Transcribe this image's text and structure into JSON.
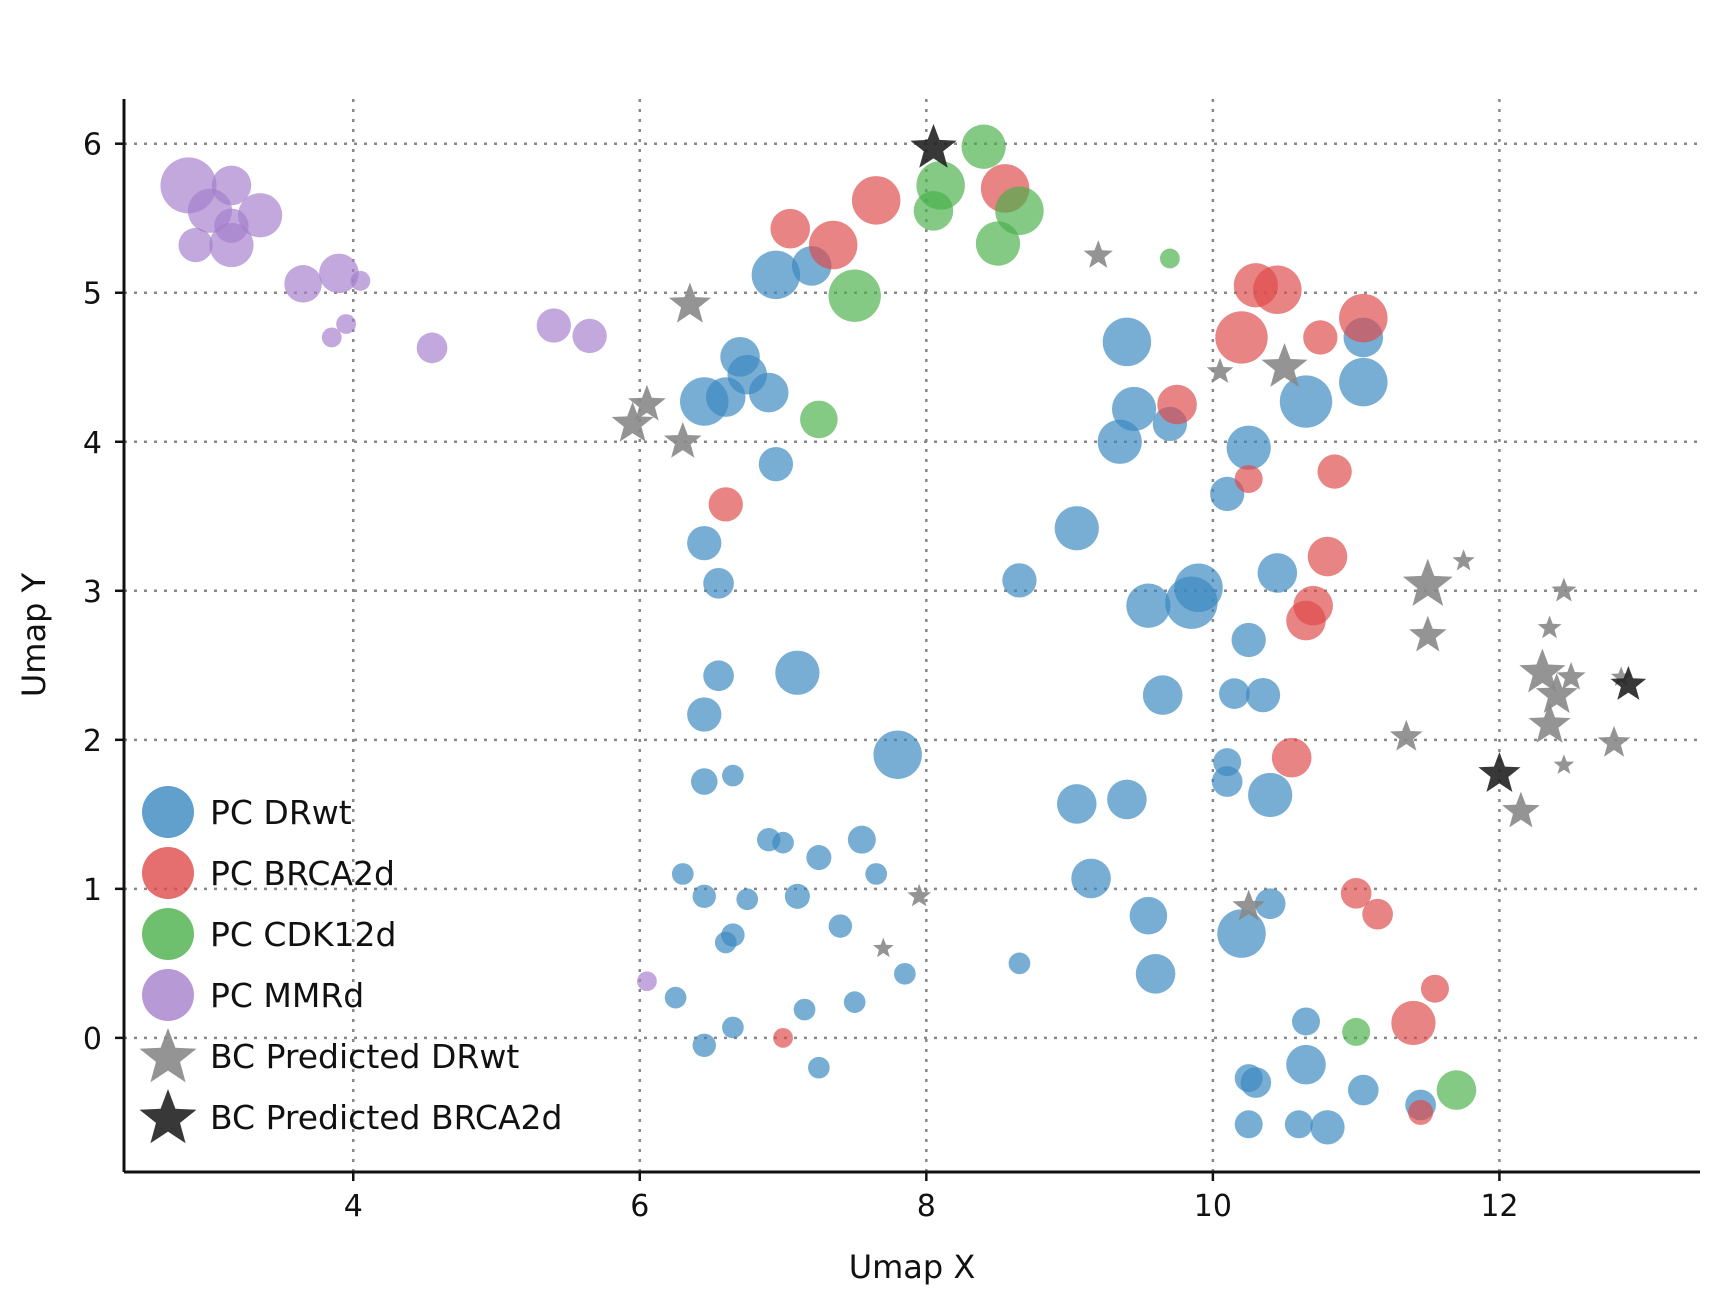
{
  "chart_data": {
    "type": "scatter",
    "xlabel": "Umap X",
    "ylabel": "Umap Y",
    "xlim": [
      2.4,
      13.4
    ],
    "ylim": [
      -0.9,
      6.3
    ],
    "xticks": [
      4,
      6,
      8,
      10,
      12
    ],
    "yticks": [
      0,
      1,
      2,
      3,
      4,
      5,
      6
    ],
    "grid": true,
    "legend_position": "lower-left",
    "series": [
      {
        "name": "PC DRwt",
        "marker": "circle",
        "color": "#3a87c0",
        "points": [
          {
            "x": 6.95,
            "y": 5.12,
            "s": 3
          },
          {
            "x": 7.2,
            "y": 5.18,
            "s": 2
          },
          {
            "x": 6.7,
            "y": 4.57,
            "s": 2
          },
          {
            "x": 6.75,
            "y": 4.45,
            "s": 2
          },
          {
            "x": 6.45,
            "y": 4.27,
            "s": 3
          },
          {
            "x": 6.6,
            "y": 4.3,
            "s": 2
          },
          {
            "x": 6.9,
            "y": 4.33,
            "s": 2
          },
          {
            "x": 6.95,
            "y": 3.85,
            "s": 1.5
          },
          {
            "x": 6.45,
            "y": 3.32,
            "s": 1.5
          },
          {
            "x": 6.55,
            "y": 3.05,
            "s": 1.2
          },
          {
            "x": 6.55,
            "y": 2.43,
            "s": 1.2
          },
          {
            "x": 7.1,
            "y": 2.45,
            "s": 2.5
          },
          {
            "x": 6.45,
            "y": 2.17,
            "s": 1.5
          },
          {
            "x": 6.45,
            "y": 1.72,
            "s": 0.9
          },
          {
            "x": 6.65,
            "y": 1.76,
            "s": 0.6
          },
          {
            "x": 7.8,
            "y": 1.9,
            "s": 3
          },
          {
            "x": 6.9,
            "y": 1.33,
            "s": 0.7
          },
          {
            "x": 7.0,
            "y": 1.31,
            "s": 0.6
          },
          {
            "x": 7.25,
            "y": 1.21,
            "s": 0.8
          },
          {
            "x": 7.55,
            "y": 1.33,
            "s": 1.0
          },
          {
            "x": 6.3,
            "y": 1.1,
            "s": 0.6
          },
          {
            "x": 6.45,
            "y": 0.95,
            "s": 0.7
          },
          {
            "x": 6.75,
            "y": 0.93,
            "s": 0.6
          },
          {
            "x": 7.1,
            "y": 0.95,
            "s": 0.8
          },
          {
            "x": 7.65,
            "y": 1.1,
            "s": 0.6
          },
          {
            "x": 7.4,
            "y": 0.75,
            "s": 0.7
          },
          {
            "x": 6.65,
            "y": 0.69,
            "s": 0.7
          },
          {
            "x": 6.6,
            "y": 0.64,
            "s": 0.6
          },
          {
            "x": 7.85,
            "y": 0.43,
            "s": 0.6
          },
          {
            "x": 6.25,
            "y": 0.27,
            "s": 0.6
          },
          {
            "x": 7.15,
            "y": 0.19,
            "s": 0.6
          },
          {
            "x": 7.5,
            "y": 0.24,
            "s": 0.6
          },
          {
            "x": 6.65,
            "y": 0.07,
            "s": 0.6
          },
          {
            "x": 6.45,
            "y": -0.05,
            "s": 0.7
          },
          {
            "x": 7.25,
            "y": -0.2,
            "s": 0.6
          },
          {
            "x": 8.65,
            "y": 3.07,
            "s": 1.5
          },
          {
            "x": 8.65,
            "y": 0.5,
            "s": 0.6
          },
          {
            "x": 9.05,
            "y": 3.42,
            "s": 2.5
          },
          {
            "x": 9.4,
            "y": 4.67,
            "s": 3
          },
          {
            "x": 9.45,
            "y": 4.22,
            "s": 2.5
          },
          {
            "x": 9.35,
            "y": 4.0,
            "s": 2.5
          },
          {
            "x": 9.7,
            "y": 4.12,
            "s": 1.5
          },
          {
            "x": 9.55,
            "y": 2.9,
            "s": 2.5
          },
          {
            "x": 9.85,
            "y": 2.92,
            "s": 3.5
          },
          {
            "x": 9.9,
            "y": 3.02,
            "s": 3
          },
          {
            "x": 9.65,
            "y": 2.3,
            "s": 2
          },
          {
            "x": 9.05,
            "y": 1.57,
            "s": 2
          },
          {
            "x": 9.4,
            "y": 1.6,
            "s": 2
          },
          {
            "x": 9.15,
            "y": 1.07,
            "s": 2
          },
          {
            "x": 9.55,
            "y": 0.82,
            "s": 1.8
          },
          {
            "x": 9.6,
            "y": 0.43,
            "s": 2
          },
          {
            "x": 10.25,
            "y": 3.96,
            "s": 2.5
          },
          {
            "x": 10.1,
            "y": 3.65,
            "s": 1.5
          },
          {
            "x": 10.45,
            "y": 3.12,
            "s": 2
          },
          {
            "x": 10.25,
            "y": 2.67,
            "s": 1.5
          },
          {
            "x": 10.15,
            "y": 2.31,
            "s": 1.2
          },
          {
            "x": 10.35,
            "y": 2.3,
            "s": 1.5
          },
          {
            "x": 10.1,
            "y": 1.85,
            "s": 1.0
          },
          {
            "x": 10.1,
            "y": 1.72,
            "s": 1.2
          },
          {
            "x": 10.4,
            "y": 1.63,
            "s": 2.5
          },
          {
            "x": 10.4,
            "y": 0.9,
            "s": 1.2
          },
          {
            "x": 10.2,
            "y": 0.7,
            "s": 3
          },
          {
            "x": 10.65,
            "y": 4.27,
            "s": 3.5
          },
          {
            "x": 11.05,
            "y": 4.7,
            "s": 2
          },
          {
            "x": 11.05,
            "y": 4.4,
            "s": 3
          },
          {
            "x": 10.65,
            "y": 0.11,
            "s": 1.0
          },
          {
            "x": 10.65,
            "y": -0.18,
            "s": 2
          },
          {
            "x": 10.25,
            "y": -0.27,
            "s": 1.0
          },
          {
            "x": 10.3,
            "y": -0.3,
            "s": 1.2
          },
          {
            "x": 10.25,
            "y": -0.58,
            "s": 1.0
          },
          {
            "x": 10.6,
            "y": -0.58,
            "s": 1.0
          },
          {
            "x": 10.8,
            "y": -0.6,
            "s": 1.5
          },
          {
            "x": 11.05,
            "y": -0.35,
            "s": 1.2
          },
          {
            "x": 11.45,
            "y": -0.45,
            "s": 1.2
          }
        ]
      },
      {
        "name": "PC BRCA2d",
        "marker": "circle",
        "color": "#de4a4a",
        "points": [
          {
            "x": 7.05,
            "y": 5.43,
            "s": 2
          },
          {
            "x": 7.35,
            "y": 5.32,
            "s": 3
          },
          {
            "x": 7.65,
            "y": 5.62,
            "s": 3
          },
          {
            "x": 8.55,
            "y": 5.7,
            "s": 3
          },
          {
            "x": 6.6,
            "y": 3.58,
            "s": 1.5
          },
          {
            "x": 7.0,
            "y": 0.0,
            "s": 0.5
          },
          {
            "x": 9.75,
            "y": 4.25,
            "s": 2
          },
          {
            "x": 10.3,
            "y": 5.05,
            "s": 2.5
          },
          {
            "x": 10.2,
            "y": 4.7,
            "s": 3.5
          },
          {
            "x": 10.45,
            "y": 5.02,
            "s": 3
          },
          {
            "x": 10.75,
            "y": 4.7,
            "s": 1.5
          },
          {
            "x": 11.05,
            "y": 4.83,
            "s": 3
          },
          {
            "x": 10.25,
            "y": 3.75,
            "s": 1.0
          },
          {
            "x": 10.85,
            "y": 3.8,
            "s": 1.5
          },
          {
            "x": 10.8,
            "y": 3.23,
            "s": 2
          },
          {
            "x": 10.7,
            "y": 2.9,
            "s": 2
          },
          {
            "x": 10.65,
            "y": 2.8,
            "s": 2
          },
          {
            "x": 10.55,
            "y": 1.88,
            "s": 2
          },
          {
            "x": 11.0,
            "y": 0.97,
            "s": 1.2
          },
          {
            "x": 11.15,
            "y": 0.83,
            "s": 1.2
          },
          {
            "x": 11.4,
            "y": 0.1,
            "s": 2.5
          },
          {
            "x": 11.55,
            "y": 0.33,
            "s": 1.0
          },
          {
            "x": 11.45,
            "y": -0.5,
            "s": 0.8
          }
        ]
      },
      {
        "name": "PC CDK12d",
        "marker": "circle",
        "color": "#4aaf4a",
        "points": [
          {
            "x": 8.4,
            "y": 5.98,
            "s": 2.5
          },
          {
            "x": 8.1,
            "y": 5.72,
            "s": 3
          },
          {
            "x": 8.05,
            "y": 5.55,
            "s": 2
          },
          {
            "x": 8.65,
            "y": 5.55,
            "s": 3
          },
          {
            "x": 8.5,
            "y": 5.33,
            "s": 2.5
          },
          {
            "x": 7.5,
            "y": 4.98,
            "s": 3.5
          },
          {
            "x": 7.25,
            "y": 4.15,
            "s": 1.8
          },
          {
            "x": 9.7,
            "y": 5.23,
            "s": 0.5
          },
          {
            "x": 11.0,
            "y": 0.04,
            "s": 1.0
          },
          {
            "x": 11.7,
            "y": -0.35,
            "s": 2
          }
        ]
      },
      {
        "name": "PC MMRd",
        "marker": "circle",
        "color": "#a57fcc",
        "points": [
          {
            "x": 2.85,
            "y": 5.72,
            "s": 4
          },
          {
            "x": 3.0,
            "y": 5.55,
            "s": 2.5
          },
          {
            "x": 3.15,
            "y": 5.72,
            "s": 2
          },
          {
            "x": 3.35,
            "y": 5.52,
            "s": 2.5
          },
          {
            "x": 2.9,
            "y": 5.32,
            "s": 1.5
          },
          {
            "x": 3.15,
            "y": 5.32,
            "s": 2.5
          },
          {
            "x": 3.15,
            "y": 5.45,
            "s": 1.5
          },
          {
            "x": 3.65,
            "y": 5.06,
            "s": 1.8
          },
          {
            "x": 3.9,
            "y": 5.13,
            "s": 2
          },
          {
            "x": 4.05,
            "y": 5.08,
            "s": 0.5
          },
          {
            "x": 3.95,
            "y": 4.79,
            "s": 0.5
          },
          {
            "x": 3.85,
            "y": 4.7,
            "s": 0.5
          },
          {
            "x": 4.55,
            "y": 4.63,
            "s": 1.2
          },
          {
            "x": 5.4,
            "y": 4.78,
            "s": 1.5
          },
          {
            "x": 5.65,
            "y": 4.71,
            "s": 1.5
          },
          {
            "x": 6.05,
            "y": 0.38,
            "s": 0.5
          }
        ]
      },
      {
        "name": "BC Predicted DRwt",
        "marker": "star",
        "color": "#888888",
        "points": [
          {
            "x": 6.35,
            "y": 4.92,
            "s": 2.5
          },
          {
            "x": 6.05,
            "y": 4.25,
            "s": 2
          },
          {
            "x": 5.95,
            "y": 4.12,
            "s": 2.5
          },
          {
            "x": 6.3,
            "y": 4.0,
            "s": 2
          },
          {
            "x": 9.2,
            "y": 5.25,
            "s": 1.2
          },
          {
            "x": 10.05,
            "y": 4.47,
            "s": 1.0
          },
          {
            "x": 10.5,
            "y": 4.5,
            "s": 3
          },
          {
            "x": 7.95,
            "y": 0.95,
            "s": 0.8
          },
          {
            "x": 7.7,
            "y": 0.6,
            "s": 0.6
          },
          {
            "x": 10.25,
            "y": 0.88,
            "s": 1.5
          },
          {
            "x": 11.5,
            "y": 3.04,
            "s": 3.5
          },
          {
            "x": 11.75,
            "y": 3.2,
            "s": 0.7
          },
          {
            "x": 11.5,
            "y": 2.7,
            "s": 2
          },
          {
            "x": 12.45,
            "y": 3.0,
            "s": 0.9
          },
          {
            "x": 12.35,
            "y": 2.75,
            "s": 0.8
          },
          {
            "x": 12.3,
            "y": 2.45,
            "s": 3
          },
          {
            "x": 12.4,
            "y": 2.3,
            "s": 2.5
          },
          {
            "x": 12.35,
            "y": 2.1,
            "s": 2.5
          },
          {
            "x": 12.5,
            "y": 2.42,
            "s": 1.2
          },
          {
            "x": 11.35,
            "y": 2.02,
            "s": 1.5
          },
          {
            "x": 12.8,
            "y": 1.98,
            "s": 1.5
          },
          {
            "x": 12.45,
            "y": 1.83,
            "s": 0.6
          },
          {
            "x": 12.15,
            "y": 1.52,
            "s": 2
          },
          {
            "x": 12.85,
            "y": 2.42,
            "s": 0.6
          }
        ]
      },
      {
        "name": "BC Predicted BRCA2d",
        "marker": "star",
        "color": "#222222",
        "points": [
          {
            "x": 8.05,
            "y": 5.97,
            "s": 3
          },
          {
            "x": 12.0,
            "y": 1.77,
            "s": 2.5
          },
          {
            "x": 12.9,
            "y": 2.37,
            "s": 1.8
          }
        ]
      }
    ]
  }
}
